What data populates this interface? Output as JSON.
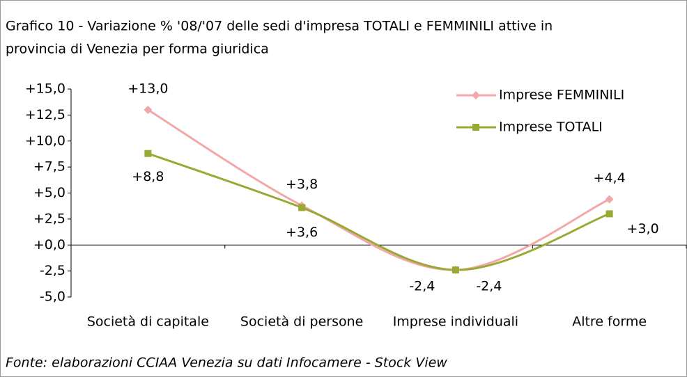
{
  "chart_data": {
    "type": "line",
    "title": "Grafico 10 - Variazione % '08/'07 delle sedi d'impresa TOTALI e FEMMINILI attive in",
    "subtitle": "provincia di Venezia per forma giuridica",
    "source": "Fonte: elaborazioni CCIAA Venezia su dati Infocamere - Stock View",
    "categories": [
      "Società di capitale",
      "Società di persone",
      "Imprese individuali",
      "Altre forme"
    ],
    "series": [
      {
        "name": "Imprese FEMMINILI",
        "color": "#f4a7a9",
        "values": [
          13.0,
          3.8,
          -2.4,
          4.4
        ],
        "value_labels": [
          "+13,0",
          "+3,8",
          "-2,4",
          "+4,4"
        ]
      },
      {
        "name": "Imprese TOTALI",
        "color": "#9aa834",
        "values": [
          8.8,
          3.6,
          -2.4,
          3.0
        ],
        "value_labels": [
          "+8,8",
          "+3,6",
          "-2,4",
          "+3,0"
        ]
      }
    ],
    "ylim": [
      -5,
      15
    ],
    "yticks": [
      {
        "value": -5,
        "label": "-5,0"
      },
      {
        "value": -2.5,
        "label": "-2,5"
      },
      {
        "value": 0,
        "label": "+0,0"
      },
      {
        "value": 2.5,
        "label": "+2,5"
      },
      {
        "value": 5,
        "label": "+5,0"
      },
      {
        "value": 7.5,
        "label": "+7,5"
      },
      {
        "value": 10,
        "label": "+10,0"
      },
      {
        "value": 12.5,
        "label": "+12,5"
      },
      {
        "value": 15,
        "label": "+15,0"
      }
    ],
    "legend": "top-right",
    "smooth": true
  }
}
